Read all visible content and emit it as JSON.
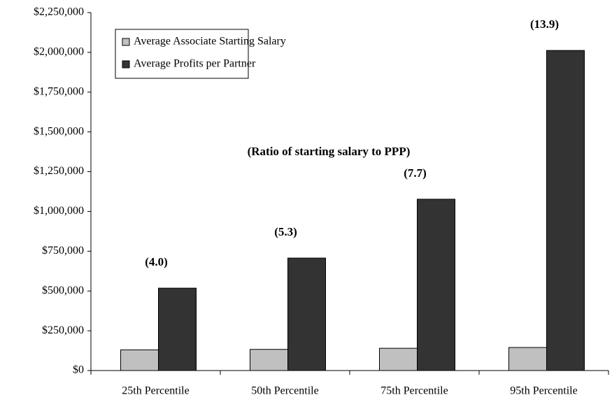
{
  "chart_data": {
    "type": "bar",
    "annotation": "(Ratio of starting salary to PPP)",
    "categories": [
      "25th Percentile",
      "50th Percentile",
      "75th Percentile",
      "95th Percentile"
    ],
    "series": [
      {
        "name": "Average Associate Starting Salary",
        "color": "#c0c0c0",
        "values": [
          130000,
          133000,
          140000,
          145000
        ]
      },
      {
        "name": "Average Profits per Partner",
        "color": "#333333",
        "values": [
          518000,
          707000,
          1077000,
          2012000
        ],
        "ratio_labels": [
          "(4.0)",
          "(5.3)",
          "(7.7)",
          "(13.9)"
        ]
      }
    ],
    "ylim": [
      0,
      2250000
    ],
    "yticks": [
      {
        "value": 0,
        "label": "$0"
      },
      {
        "value": 250000,
        "label": "$250,000"
      },
      {
        "value": 500000,
        "label": "$500,000"
      },
      {
        "value": 750000,
        "label": "$750,000"
      },
      {
        "value": 1000000,
        "label": "$1,000,000"
      },
      {
        "value": 1250000,
        "label": "$1,250,000"
      },
      {
        "value": 1500000,
        "label": "$1,500,000"
      },
      {
        "value": 1750000,
        "label": "$1,750,000"
      },
      {
        "value": 2000000,
        "label": "$2,000,000"
      },
      {
        "value": 2250000,
        "label": "$2,250,000"
      }
    ],
    "legend": "top-left",
    "grid": false
  }
}
